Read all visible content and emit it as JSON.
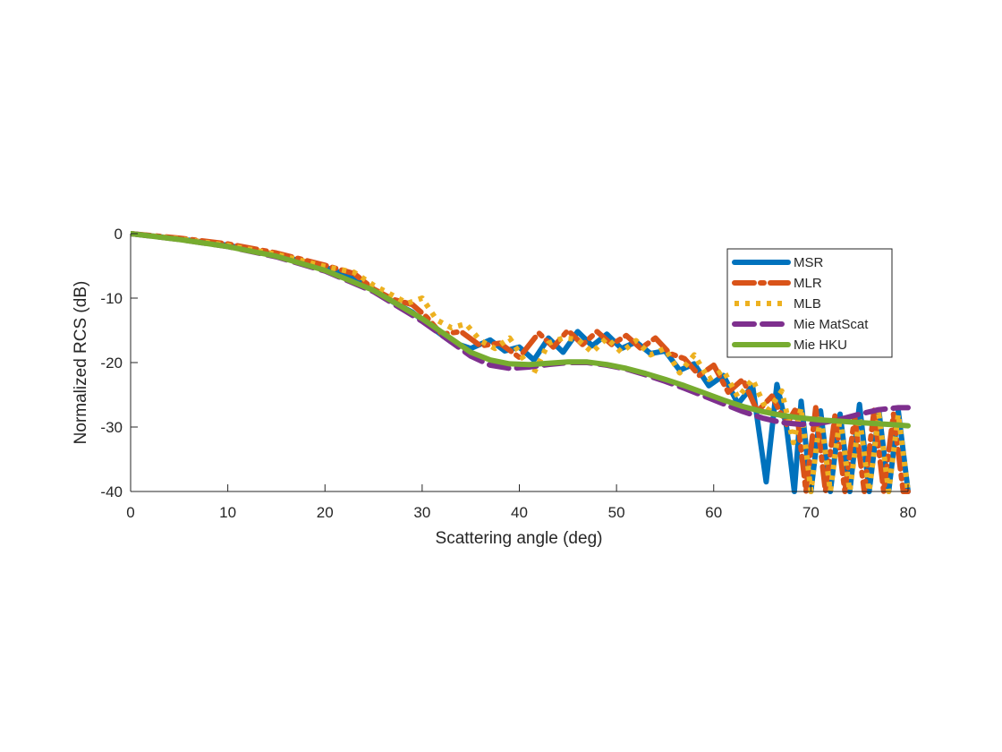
{
  "chart_data": {
    "type": "line",
    "title": "",
    "xlabel": "Scattering angle (deg)",
    "ylabel": "Normalized RCS (dB)",
    "xlim": [
      0,
      80
    ],
    "ylim": [
      -40,
      0
    ],
    "xticks": [
      "0",
      "10",
      "20",
      "30",
      "40",
      "50",
      "60",
      "70",
      "80"
    ],
    "yticks": [
      "0",
      "-10",
      "-20",
      "-30",
      "-40"
    ],
    "grid": false,
    "legend_position": "top-right",
    "series": [
      {
        "name": "MSR",
        "color": "#0072BD",
        "style": "solid",
        "x": [
          0,
          5,
          10,
          15,
          20,
          23,
          25,
          27,
          29,
          31,
          33,
          35,
          37,
          38.5,
          40,
          41.5,
          43,
          44.5,
          46,
          47.5,
          49,
          50.5,
          52,
          53.5,
          55,
          56.5,
          58,
          59.5,
          61,
          62.5,
          64,
          65.4,
          66.5,
          67.5,
          68.3,
          69,
          70,
          71,
          72,
          73,
          74,
          75,
          76,
          77,
          78,
          79,
          80
        ],
        "y": [
          0,
          -0.8,
          -1.8,
          -3.3,
          -5.2,
          -6.8,
          -8.8,
          -10.6,
          -12.2,
          -14.6,
          -16.8,
          -17.8,
          -16.5,
          -18.2,
          -17.6,
          -19.6,
          -16.2,
          -18.4,
          -15.2,
          -17.4,
          -15.6,
          -17.8,
          -16.8,
          -18.6,
          -18.2,
          -21.2,
          -20.2,
          -23.6,
          -22.0,
          -26.4,
          -23.6,
          -38.5,
          -23.4,
          -30.0,
          -40.0,
          -26.0,
          -40.0,
          -27.5,
          -40.0,
          -28.0,
          -40.0,
          -26.5,
          -40.0,
          -27.5,
          -40.0,
          -27.5,
          -40.0
        ]
      },
      {
        "name": "MLR",
        "color": "#D95319",
        "style": "dashdot",
        "x": [
          0,
          5,
          10,
          15,
          20,
          23,
          25,
          27,
          29,
          30.5,
          32,
          34,
          36,
          38,
          40,
          42,
          43.5,
          45,
          46.5,
          48,
          49.5,
          51,
          52.5,
          54,
          55.5,
          57,
          58.5,
          60,
          61.5,
          63,
          64.5,
          66,
          67.5,
          68.5,
          69.5,
          70.5,
          71.5,
          72.5,
          73.5,
          74.5,
          75.5,
          76.5,
          77.5,
          78.5,
          79.5,
          80
        ],
        "y": [
          0,
          -0.7,
          -1.6,
          -3.0,
          -4.9,
          -6.2,
          -8.6,
          -10.2,
          -11.0,
          -13.0,
          -15.6,
          -15.2,
          -17.4,
          -17.0,
          -19.2,
          -15.4,
          -17.6,
          -15.0,
          -17.2,
          -15.2,
          -17.2,
          -15.8,
          -17.8,
          -16.2,
          -18.6,
          -19.4,
          -22.0,
          -20.4,
          -24.6,
          -22.6,
          -27.6,
          -25.2,
          -29.6,
          -27.0,
          -40.0,
          -27.0,
          -40.0,
          -28.0,
          -40.0,
          -28.4,
          -40.0,
          -27.4,
          -40.0,
          -28.0,
          -40.0,
          -40.0
        ]
      },
      {
        "name": "MLB",
        "color": "#EDB120",
        "style": "dotted",
        "x": [
          0,
          5,
          10,
          15,
          20,
          23,
          25,
          27,
          28.5,
          30,
          31.5,
          33,
          34.5,
          36,
          37.5,
          39,
          40.5,
          41.5,
          43,
          44.5,
          46,
          47.5,
          49,
          50.5,
          52,
          53.5,
          55,
          56.5,
          58,
          59.5,
          61,
          62.5,
          64,
          65.5,
          67,
          68.2,
          69,
          70,
          71,
          72,
          73,
          74,
          75,
          76,
          77,
          78,
          79,
          80
        ],
        "y": [
          0,
          -0.8,
          -1.8,
          -3.2,
          -5.1,
          -6.0,
          -8.0,
          -9.6,
          -10.8,
          -10.0,
          -13.4,
          -14.6,
          -14.0,
          -16.6,
          -17.8,
          -16.2,
          -19.6,
          -21.6,
          -17.0,
          -16.2,
          -16.4,
          -18.4,
          -16.2,
          -18.4,
          -16.6,
          -18.8,
          -17.8,
          -21.6,
          -18.8,
          -22.6,
          -21.2,
          -25.4,
          -22.6,
          -27.6,
          -24.4,
          -32.4,
          -27.0,
          -40.0,
          -28.0,
          -40.0,
          -28.5,
          -40.0,
          -28.5,
          -40.0,
          -28.0,
          -40.0,
          -28.0,
          -40.0
        ]
      },
      {
        "name": "Mie MatScat",
        "color": "#7E2F8E",
        "style": "dashed",
        "x": [
          0,
          5,
          10,
          15,
          20,
          25,
          30,
          33,
          35,
          37,
          39,
          41,
          43,
          45,
          47,
          49,
          51,
          53,
          55,
          57,
          59,
          61,
          63,
          65,
          67,
          69,
          71,
          73,
          75,
          77,
          79,
          80
        ],
        "y": [
          0,
          -0.9,
          -2.0,
          -3.6,
          -5.8,
          -9.0,
          -13.6,
          -16.8,
          -19.0,
          -20.4,
          -20.9,
          -20.7,
          -20.3,
          -20.0,
          -20.0,
          -20.4,
          -21.0,
          -21.9,
          -22.9,
          -24.0,
          -25.2,
          -26.4,
          -27.6,
          -28.6,
          -29.3,
          -29.6,
          -29.4,
          -28.8,
          -28.0,
          -27.3,
          -27.0,
          -27.0
        ]
      },
      {
        "name": "Mie HKU",
        "color": "#77AC30",
        "style": "solid",
        "x": [
          0,
          5,
          10,
          15,
          20,
          25,
          30,
          33,
          35,
          37,
          39,
          41,
          43,
          45,
          47,
          49,
          51,
          53,
          55,
          57,
          59,
          61,
          63,
          65,
          67,
          69,
          71,
          73,
          75,
          77,
          79,
          80
        ],
        "y": [
          0,
          -0.9,
          -2.0,
          -3.5,
          -5.7,
          -8.8,
          -13.2,
          -16.3,
          -18.4,
          -19.6,
          -20.2,
          -20.3,
          -20.1,
          -19.9,
          -19.9,
          -20.3,
          -20.9,
          -21.7,
          -22.6,
          -23.6,
          -24.7,
          -25.8,
          -26.8,
          -27.6,
          -28.2,
          -28.6,
          -28.9,
          -29.1,
          -29.3,
          -29.5,
          -29.7,
          -29.8
        ]
      }
    ]
  }
}
